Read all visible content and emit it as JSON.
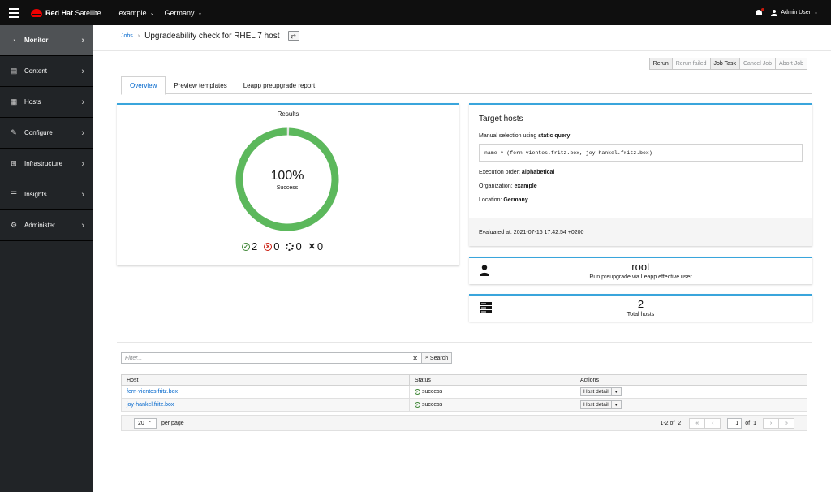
{
  "topbar": {
    "brand_bold": "Red Hat",
    "brand_light": " Satellite",
    "organization": "example",
    "location": "Germany",
    "user": "Admin User"
  },
  "sidebar": {
    "items": [
      {
        "label": "Monitor",
        "icon": "dashboard-icon"
      },
      {
        "label": "Content",
        "icon": "book-icon"
      },
      {
        "label": "Hosts",
        "icon": "server-icon"
      },
      {
        "label": "Configure",
        "icon": "wrench-icon"
      },
      {
        "label": "Infrastructure",
        "icon": "network-icon"
      },
      {
        "label": "Insights",
        "icon": "database-icon"
      },
      {
        "label": "Administer",
        "icon": "gear-icon"
      }
    ]
  },
  "breadcrumb": {
    "parent": "Jobs",
    "title": "Upgradeability check for RHEL 7 host"
  },
  "actions": {
    "rerun": "Rerun",
    "rerun_failed": "Rerun failed",
    "job_task": "Job Task",
    "cancel_job": "Cancel Job",
    "abort_job": "Abort Job"
  },
  "tabs": [
    "Overview",
    "Preview templates",
    "Leapp preupgrade report"
  ],
  "results": {
    "title": "Results",
    "percent": "100%",
    "label": "Success",
    "success_fraction": 1.0,
    "success_count": "2",
    "failed_count": "0",
    "pending_count": "0",
    "cancelled_count": "0",
    "colors": {
      "success": "#5cb85c",
      "track": "#e6e6e6"
    }
  },
  "target": {
    "title": "Target hosts",
    "selection_prefix": "Manual selection using ",
    "selection_bold": "static query",
    "query": "name ^ (fern-vientos.fritz.box, joy-hankel.fritz.box)",
    "exec_order_label": "Execution order: ",
    "exec_order": "alphabetical",
    "org_label": "Organization: ",
    "org": "example",
    "loc_label": "Location: ",
    "loc": "Germany",
    "evaluated": "Evaluated at: 2021-07-16 17:42:54 +0200"
  },
  "user_card": {
    "value": "root",
    "label": "Run preupgrade via Leapp effective user"
  },
  "host_card": {
    "value": "2",
    "label": "Total hosts"
  },
  "filter": {
    "placeholder": "Filter...",
    "search": "Search"
  },
  "table": {
    "headers": [
      "Host",
      "Status",
      "Actions"
    ],
    "rows": [
      {
        "host": "fern-vientos.fritz.box",
        "status": "success",
        "action": "Host detail"
      },
      {
        "host": "joy-hankel.fritz.box",
        "status": "success",
        "action": "Host detail"
      }
    ]
  },
  "pager": {
    "per_page": "20",
    "per_page_label": "per page",
    "range": "1-2 of",
    "total": "2",
    "page": "1",
    "of_pages": "of",
    "pages": "1"
  }
}
